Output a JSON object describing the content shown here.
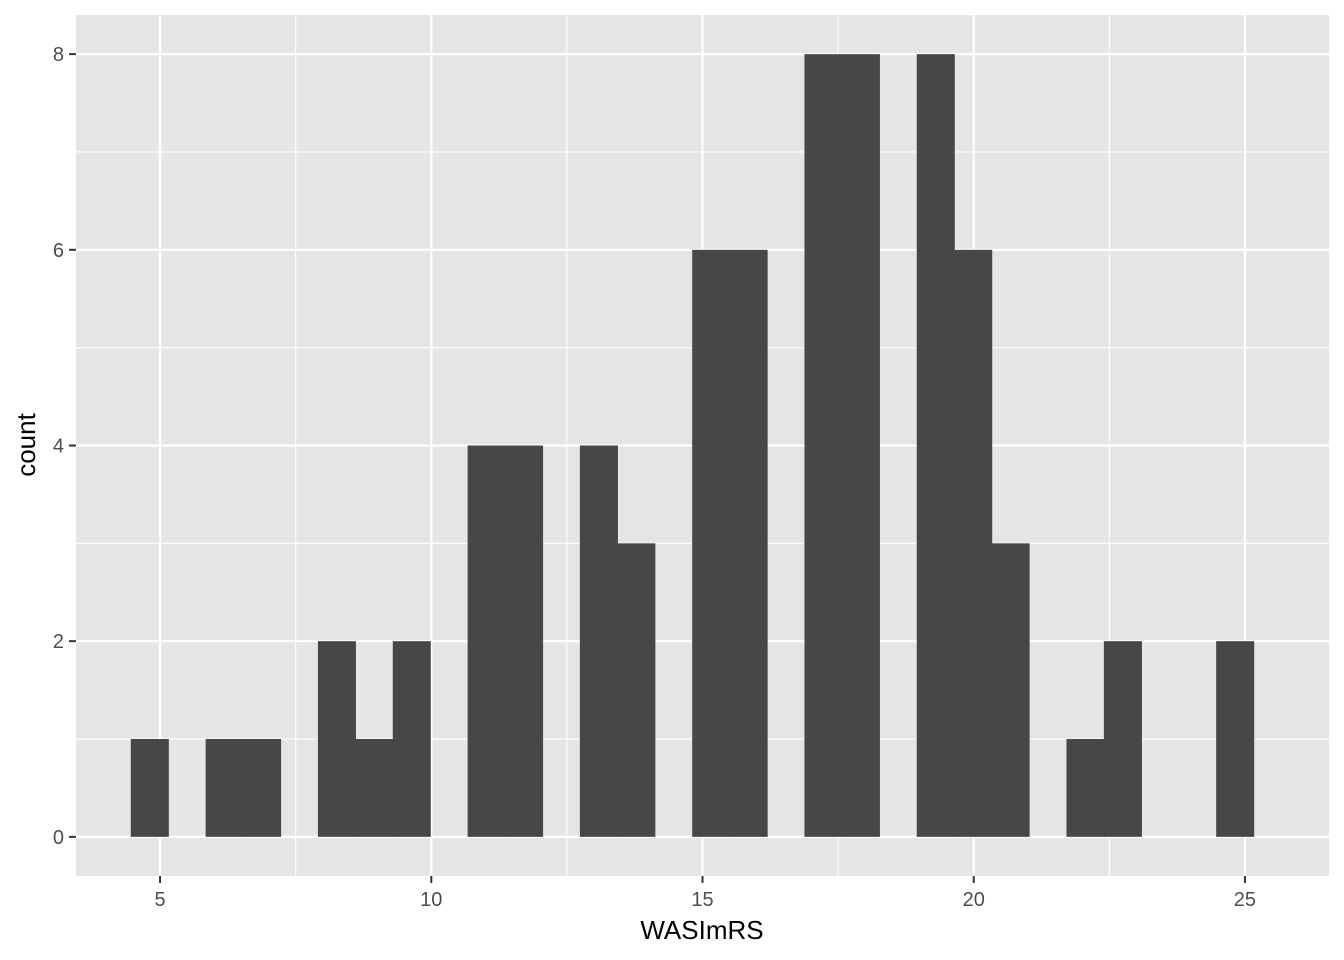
{
  "chart_data": {
    "type": "bar",
    "subtype": "histogram",
    "xlabel": "WASImRS",
    "ylabel": "count",
    "xlim": [
      3.45,
      26.55
    ],
    "ylim": [
      -0.4,
      8.4
    ],
    "x_ticks": [
      5,
      10,
      15,
      20,
      25
    ],
    "y_ticks": [
      0,
      2,
      4,
      6,
      8
    ],
    "grid": true,
    "bin_width": 0.69,
    "bins": [
      {
        "start": 4.46,
        "end": 5.15,
        "count": 1
      },
      {
        "start": 5.84,
        "end": 6.53,
        "count": 1
      },
      {
        "start": 6.53,
        "end": 7.22,
        "count": 1
      },
      {
        "start": 7.91,
        "end": 8.6,
        "count": 2
      },
      {
        "start": 8.6,
        "end": 9.29,
        "count": 1
      },
      {
        "start": 9.29,
        "end": 9.98,
        "count": 2
      },
      {
        "start": 10.67,
        "end": 11.36,
        "count": 4
      },
      {
        "start": 11.36,
        "end": 12.05,
        "count": 4
      },
      {
        "start": 12.74,
        "end": 13.43,
        "count": 4
      },
      {
        "start": 13.43,
        "end": 14.12,
        "count": 3
      },
      {
        "start": 14.81,
        "end": 15.5,
        "count": 6
      },
      {
        "start": 15.5,
        "end": 16.19,
        "count": 6
      },
      {
        "start": 16.88,
        "end": 17.57,
        "count": 8
      },
      {
        "start": 17.57,
        "end": 18.26,
        "count": 8
      },
      {
        "start": 18.95,
        "end": 19.64,
        "count": 8
      },
      {
        "start": 19.64,
        "end": 20.33,
        "count": 6
      },
      {
        "start": 20.33,
        "end": 21.02,
        "count": 3
      },
      {
        "start": 21.71,
        "end": 22.4,
        "count": 1
      },
      {
        "start": 22.4,
        "end": 23.09,
        "count": 2
      },
      {
        "start": 24.47,
        "end": 25.16,
        "count": 2
      }
    ],
    "colors": {
      "panel": "#e5e5e5",
      "grid": "#ffffff",
      "bar": "#474747",
      "tick_text": "#4d4d4d",
      "tick_mark": "#333333",
      "title_text": "#000000"
    }
  }
}
